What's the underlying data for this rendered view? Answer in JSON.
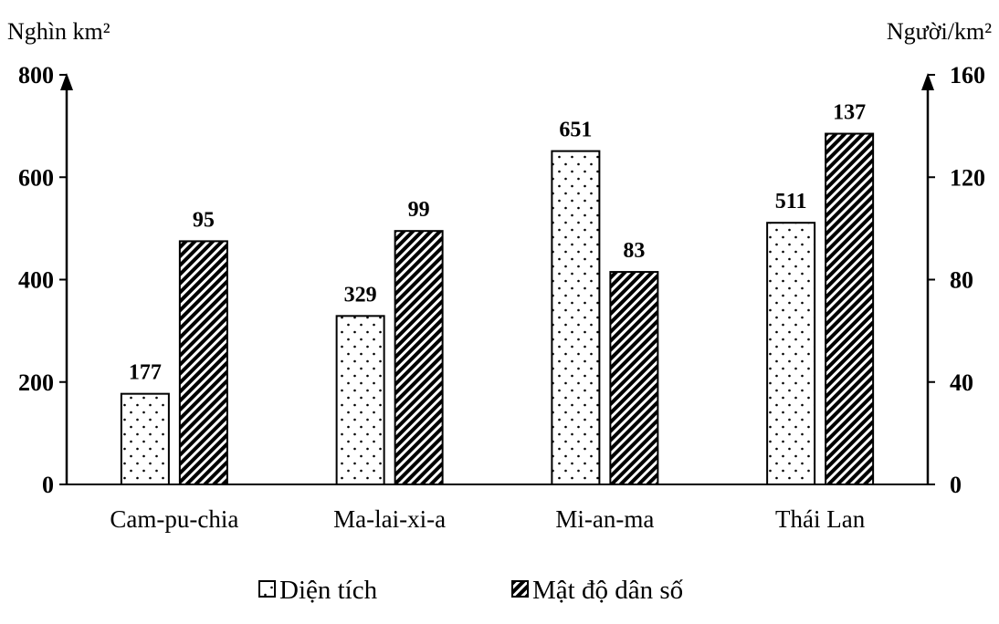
{
  "chart_data": {
    "type": "bar",
    "categories": [
      "Cam-pu-chia",
      "Ma-lai-xi-a",
      "Mi-an-ma",
      "Thái Lan"
    ],
    "series": [
      {
        "name": "Diện tích",
        "axis": "left",
        "pattern": "dots",
        "values": [
          177,
          329,
          651,
          511
        ]
      },
      {
        "name": "Mật độ dân số",
        "axis": "right",
        "pattern": "diagonal-hatch",
        "values": [
          95,
          99,
          83,
          137
        ]
      }
    ],
    "y_left": {
      "unit": "Nghìn km²",
      "ylim": [
        0,
        800
      ],
      "ticks": [
        "0",
        "200",
        "400",
        "600",
        "800"
      ]
    },
    "y_right": {
      "unit": "Người/km²",
      "ylim": [
        0,
        160
      ],
      "ticks": [
        "0",
        "40",
        "80",
        "120",
        "160"
      ]
    },
    "legend": {
      "position": "bottom"
    },
    "grid": false,
    "colors": {
      "ink": "#000000",
      "fill": "#ffffff"
    }
  }
}
